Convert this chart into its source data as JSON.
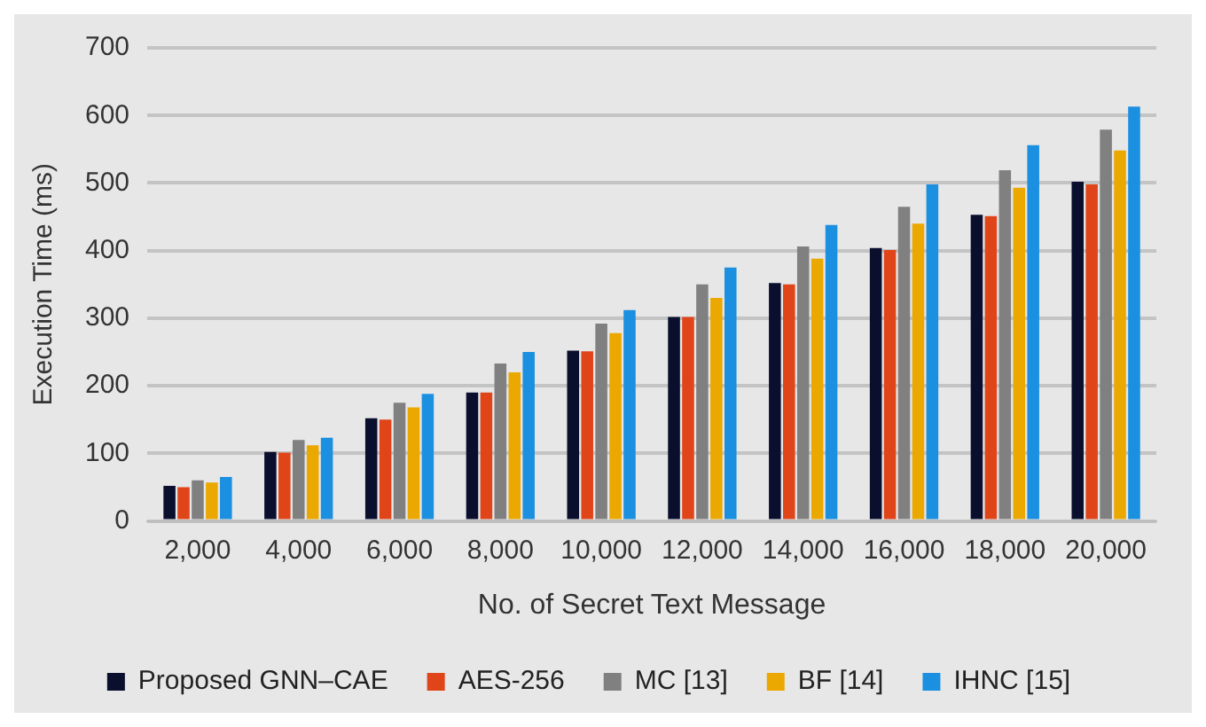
{
  "chart_data": {
    "type": "bar",
    "xlabel": "No. of Secret Text Message",
    "ylabel": "Execution Time (ms)",
    "categories": [
      "2,000",
      "4,000",
      "6,000",
      "8,000",
      "10,000",
      "12,000",
      "14,000",
      "16,000",
      "18,000",
      "20,000"
    ],
    "series": [
      {
        "name": "Proposed GNN–CAE",
        "color": "#0b0f2e",
        "values": [
          52,
          102,
          152,
          190,
          252,
          302,
          352,
          404,
          453,
          502
        ]
      },
      {
        "name": "AES-256",
        "color": "#e0451a",
        "values": [
          50,
          101,
          150,
          190,
          251,
          302,
          350,
          401,
          451,
          498
        ]
      },
      {
        "name": "MC [13]",
        "color": "#808080",
        "values": [
          60,
          120,
          175,
          233,
          292,
          350,
          406,
          465,
          519,
          579
        ]
      },
      {
        "name": "BF [14]",
        "color": "#eba800",
        "values": [
          57,
          112,
          168,
          220,
          278,
          330,
          388,
          440,
          493,
          548
        ]
      },
      {
        "name": "IHNC [15]",
        "color": "#1b8fe0",
        "values": [
          65,
          123,
          188,
          250,
          312,
          375,
          438,
          498,
          556,
          613
        ]
      }
    ],
    "ylim": [
      0,
      700
    ],
    "yticks": [
      0,
      100,
      200,
      300,
      400,
      500,
      600,
      700
    ],
    "grid": "y",
    "legend": "bottom"
  }
}
